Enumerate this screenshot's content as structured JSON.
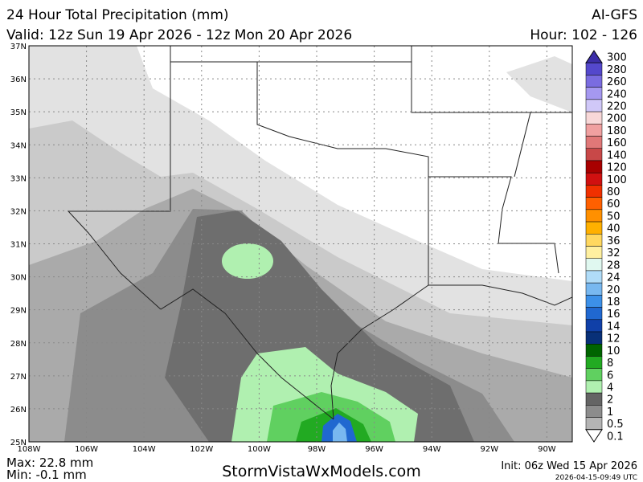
{
  "header": {
    "title": "24 Hour Total Precipitation (mm)",
    "model": "AI-GFS",
    "valid": "Valid: 12z Sun 19 Apr 2026 - 12z Mon 20 Apr 2026",
    "hour": "Hour: 102 - 126"
  },
  "map": {
    "lat_labels": [
      "37N",
      "36N",
      "35N",
      "34N",
      "33N",
      "32N",
      "31N",
      "30N",
      "29N",
      "28N",
      "27N",
      "26N",
      "25N"
    ],
    "lon_labels": [
      "108W",
      "106W",
      "104W",
      "102W",
      "100W",
      "98W",
      "96W",
      "94W",
      "92W",
      "90W"
    ]
  },
  "colorbar": {
    "labels": [
      "300",
      "280",
      "260",
      "240",
      "220",
      "200",
      "180",
      "160",
      "140",
      "120",
      "100",
      "80",
      "60",
      "50",
      "40",
      "36",
      "32",
      "28",
      "24",
      "20",
      "18",
      "16",
      "14",
      "12",
      "10",
      "8",
      "6",
      "4",
      "2",
      "1",
      "0.5",
      "0.1"
    ],
    "colors": [
      "#3c2ea8",
      "#5448cc",
      "#7a6ce0",
      "#a598f0",
      "#d0c8f8",
      "#f8d8d8",
      "#f0a0a0",
      "#e07878",
      "#c84848",
      "#a80000",
      "#d01010",
      "#f03000",
      "#ff6000",
      "#ff9000",
      "#ffb000",
      "#ffd860",
      "#fff0a0",
      "#e0f8f0",
      "#b0dcf8",
      "#78b8f0",
      "#3c90e8",
      "#2068d0",
      "#1040a8",
      "#083078",
      "#006400",
      "#22aa22",
      "#60d060",
      "#b0f0b0",
      "#646464",
      "#8c8c8c",
      "#b4b4b4",
      "#ffffff"
    ]
  },
  "footer": {
    "max": "Max: 22.8 mm",
    "min": "Min: -0.1 mm",
    "site": "StormVistaWxModels.com",
    "init": "Init: 06z Wed 15 Apr 2026",
    "timestamp": "2026-04-15-09:49 UTC"
  }
}
